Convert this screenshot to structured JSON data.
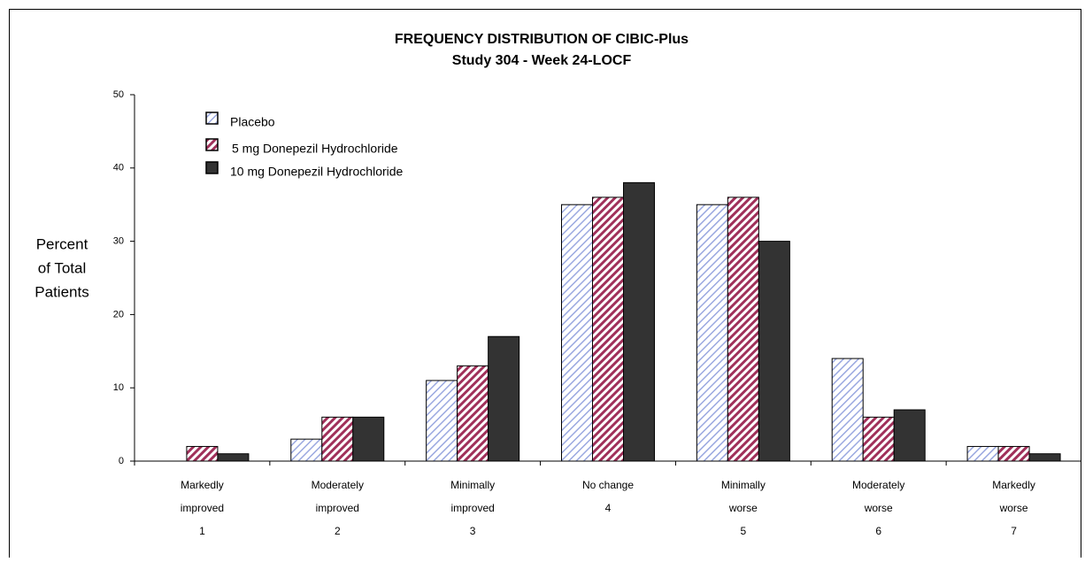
{
  "chart_data": {
    "type": "bar",
    "title": "FREQUENCY DISTRIBUTION OF CIBIC-Plus",
    "subtitle": "Study 304 - Week 24-LOCF",
    "y_label": [
      "Percent",
      "of Total",
      "Patients"
    ],
    "categories": [
      [
        "Markedly",
        "improved",
        "1"
      ],
      [
        "Moderately",
        "improved",
        "2"
      ],
      [
        "Minimally",
        "improved",
        "3"
      ],
      [
        "No change",
        "4"
      ],
      [
        "Minimally",
        "worse",
        "5"
      ],
      [
        "Moderately",
        "worse",
        "6"
      ],
      [
        "Markedly",
        "worse",
        "7"
      ]
    ],
    "series": [
      {
        "name": "Placebo",
        "color": "#9aa8e0",
        "pattern": "hatch-light",
        "values": [
          0,
          3,
          11,
          35,
          35,
          14,
          2
        ]
      },
      {
        "name": "5 mg Donepezil Hydrochloride",
        "color": "#a0305a",
        "pattern": "hatch",
        "values": [
          2,
          6,
          13,
          36,
          36,
          6,
          2
        ]
      },
      {
        "name": "10 mg Donepezil Hydrochloride",
        "color": "#333333",
        "pattern": "solid",
        "values": [
          1,
          6,
          17,
          38,
          30,
          7,
          1
        ]
      }
    ],
    "ylim": [
      0,
      50
    ],
    "yticks": [
      0,
      10,
      20,
      30,
      40,
      50
    ],
    "grid": false,
    "legend": "top-left"
  }
}
